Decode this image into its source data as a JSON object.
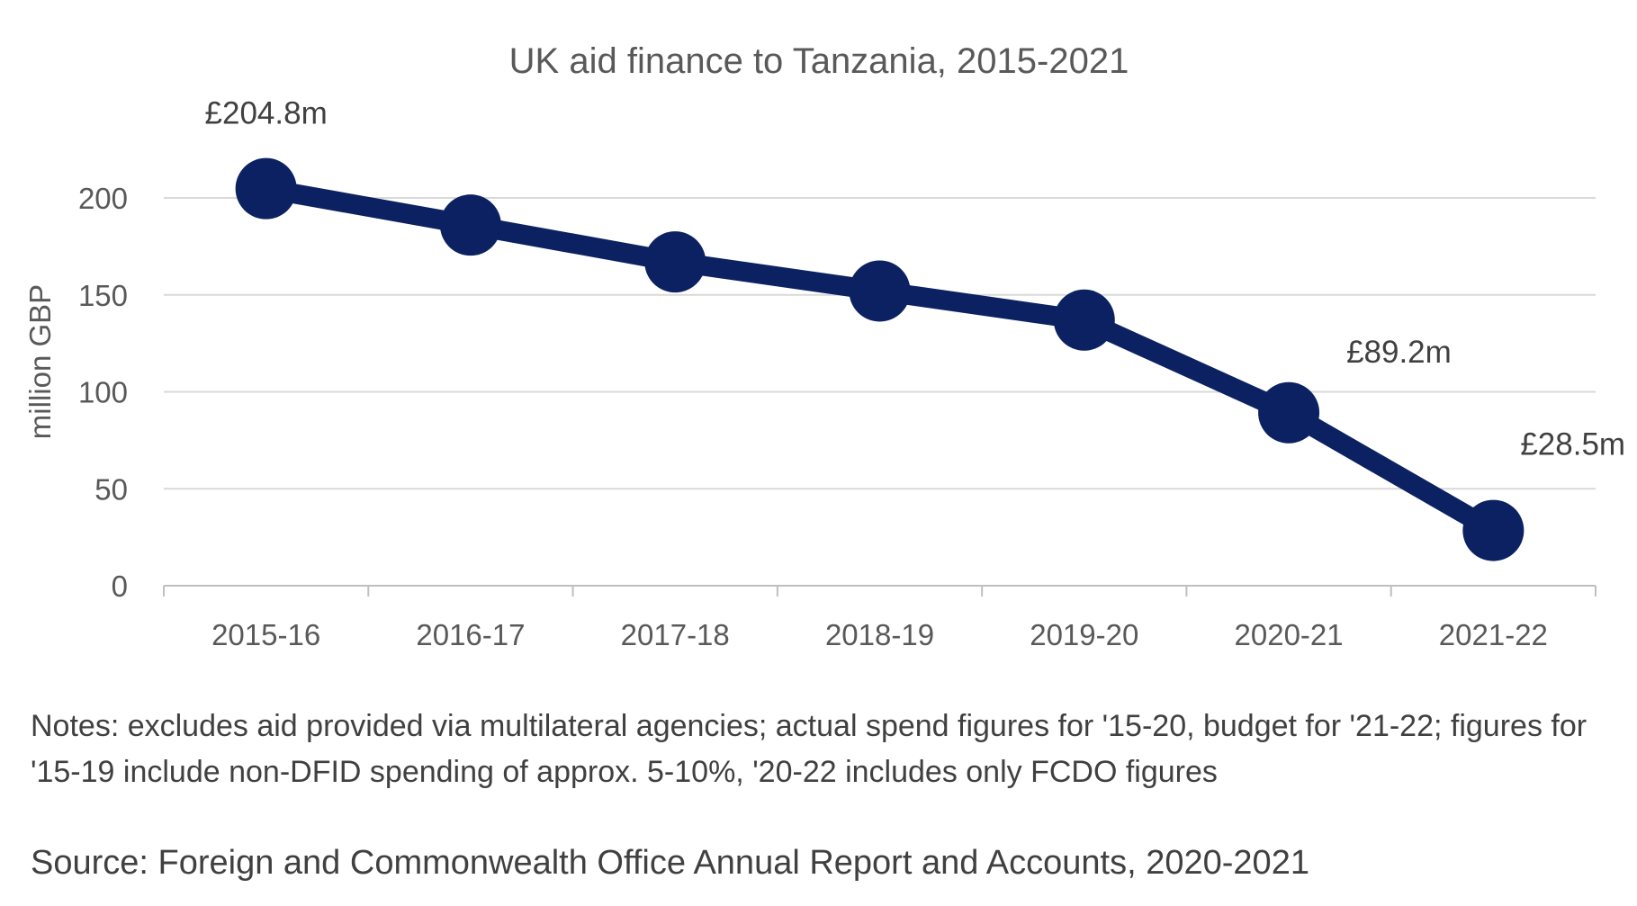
{
  "chart_data": {
    "type": "line",
    "title": "UK aid finance to Tanzania, 2015-2021",
    "xlabel": "",
    "ylabel": "million GBP",
    "categories": [
      "2015-16",
      "2016-17",
      "2017-18",
      "2018-19",
      "2019-20",
      "2020-21",
      "2021-22"
    ],
    "series": [
      {
        "values": [
          204.8,
          186,
          167,
          152,
          137,
          89.2,
          28.5
        ]
      }
    ],
    "ylim": [
      0,
      220
    ],
    "yticks": [
      0,
      50,
      100,
      150,
      200
    ],
    "grid": true,
    "legend": "none",
    "data_labels": [
      {
        "index": 0,
        "text": "£204.8m"
      },
      {
        "index": 5,
        "text": "£89.2m"
      },
      {
        "index": 6,
        "text": "£28.5m"
      }
    ],
    "colors": {
      "series": "#0b2161",
      "grid": "#d9d9d9",
      "axis": "#bfbfbf",
      "text": "#595959"
    }
  },
  "notes": "Notes: excludes aid provided via multilateral agencies; actual spend figures for '15-20, budget for '21-22; figures for '15-19 include non-DFID spending of approx. 5-10%, '20-22 includes only FCDO figures",
  "source": "Source: Foreign and Commonwealth Office Annual Report and Accounts, 2020-2021"
}
